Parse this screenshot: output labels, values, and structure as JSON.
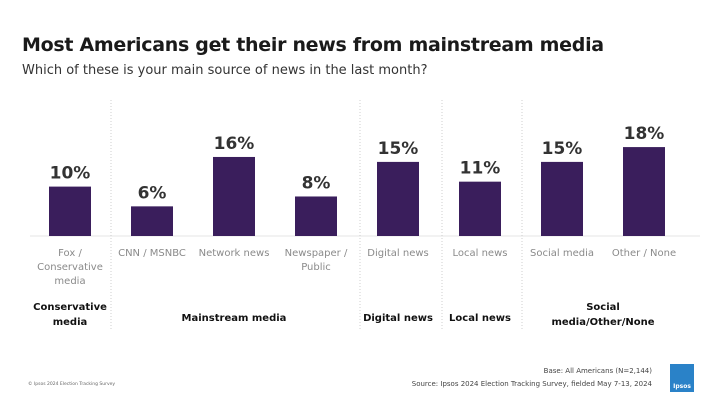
{
  "chart_data": {
    "type": "bar",
    "title": "Most Americans get their news from mainstream media",
    "subtitle": "Which of these is your main source of news in the last month?",
    "categories": [
      "Fox / Conservative media",
      "CNN / MSNBC",
      "Network news",
      "Newspaper / Public",
      "Digital news",
      "Local news",
      "Social media",
      "Other / None"
    ],
    "category_lines": [
      [
        "Fox /",
        "Conservative",
        "media"
      ],
      [
        "CNN / MSNBC"
      ],
      [
        "Network news"
      ],
      [
        "Newspaper /",
        "Public"
      ],
      [
        "Digital news"
      ],
      [
        "Local news"
      ],
      [
        "Social media"
      ],
      [
        "Other / None"
      ]
    ],
    "values": [
      10,
      6,
      16,
      8,
      15,
      11,
      15,
      18
    ],
    "value_labels": [
      "10%",
      "6%",
      "16%",
      "8%",
      "15%",
      "11%",
      "15%",
      "18%"
    ],
    "unit": "%",
    "ylim": [
      0,
      20
    ],
    "grid": false,
    "groups": [
      {
        "label_lines": [
          "Conservative",
          "media"
        ],
        "start": 0,
        "end": 0
      },
      {
        "label_lines": [
          "Mainstream media"
        ],
        "start": 1,
        "end": 3
      },
      {
        "label_lines": [
          "Digital news"
        ],
        "start": 4,
        "end": 4
      },
      {
        "label_lines": [
          "Local news"
        ],
        "start": 5,
        "end": 5
      },
      {
        "label_lines": [
          "Social",
          "media/Other/None"
        ],
        "start": 6,
        "end": 7
      }
    ],
    "bar_color": "#3a1e5c"
  },
  "footer": {
    "base": "Base: All Americans (N=2,144)",
    "source": "Source: Ipsos 2024 Election Tracking Survey, fielded May 7-13, 2024",
    "copyright": "© Ipsos 2024 Election Tracking Survey",
    "logo": "Ipsos"
  }
}
